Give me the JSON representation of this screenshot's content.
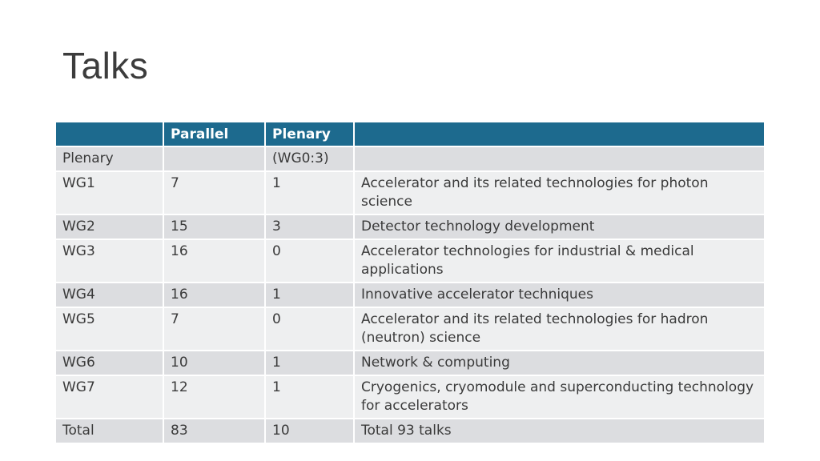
{
  "slide": {
    "title": "Talks"
  },
  "table": {
    "headers": [
      "",
      "Parallel",
      "Plenary",
      ""
    ],
    "rows": [
      [
        "Plenary",
        "",
        "(WG0:3)",
        ""
      ],
      [
        "WG1",
        "7",
        "1",
        "Accelerator and its related technologies for photon science"
      ],
      [
        "WG2",
        "15",
        "3",
        "Detector technology development"
      ],
      [
        "WG3",
        "16",
        "0",
        "Accelerator technologies for industrial & medical applications"
      ],
      [
        "WG4",
        "16",
        "1",
        "Innovative accelerator techniques"
      ],
      [
        "WG5",
        "7",
        "0",
        "Accelerator and its related technologies for hadron (neutron) science"
      ],
      [
        "WG6",
        "10",
        "1",
        "Network & computing"
      ],
      [
        "WG7",
        "12",
        "1",
        "Cryogenics, cryomodule and superconducting technology for accelerators"
      ],
      [
        "Total",
        "83",
        "10",
        "Total 93 talks"
      ]
    ]
  },
  "colors": {
    "header_bg": "#1d6a8e",
    "row_dark": "#dcdde0",
    "row_light": "#eeeff0"
  }
}
